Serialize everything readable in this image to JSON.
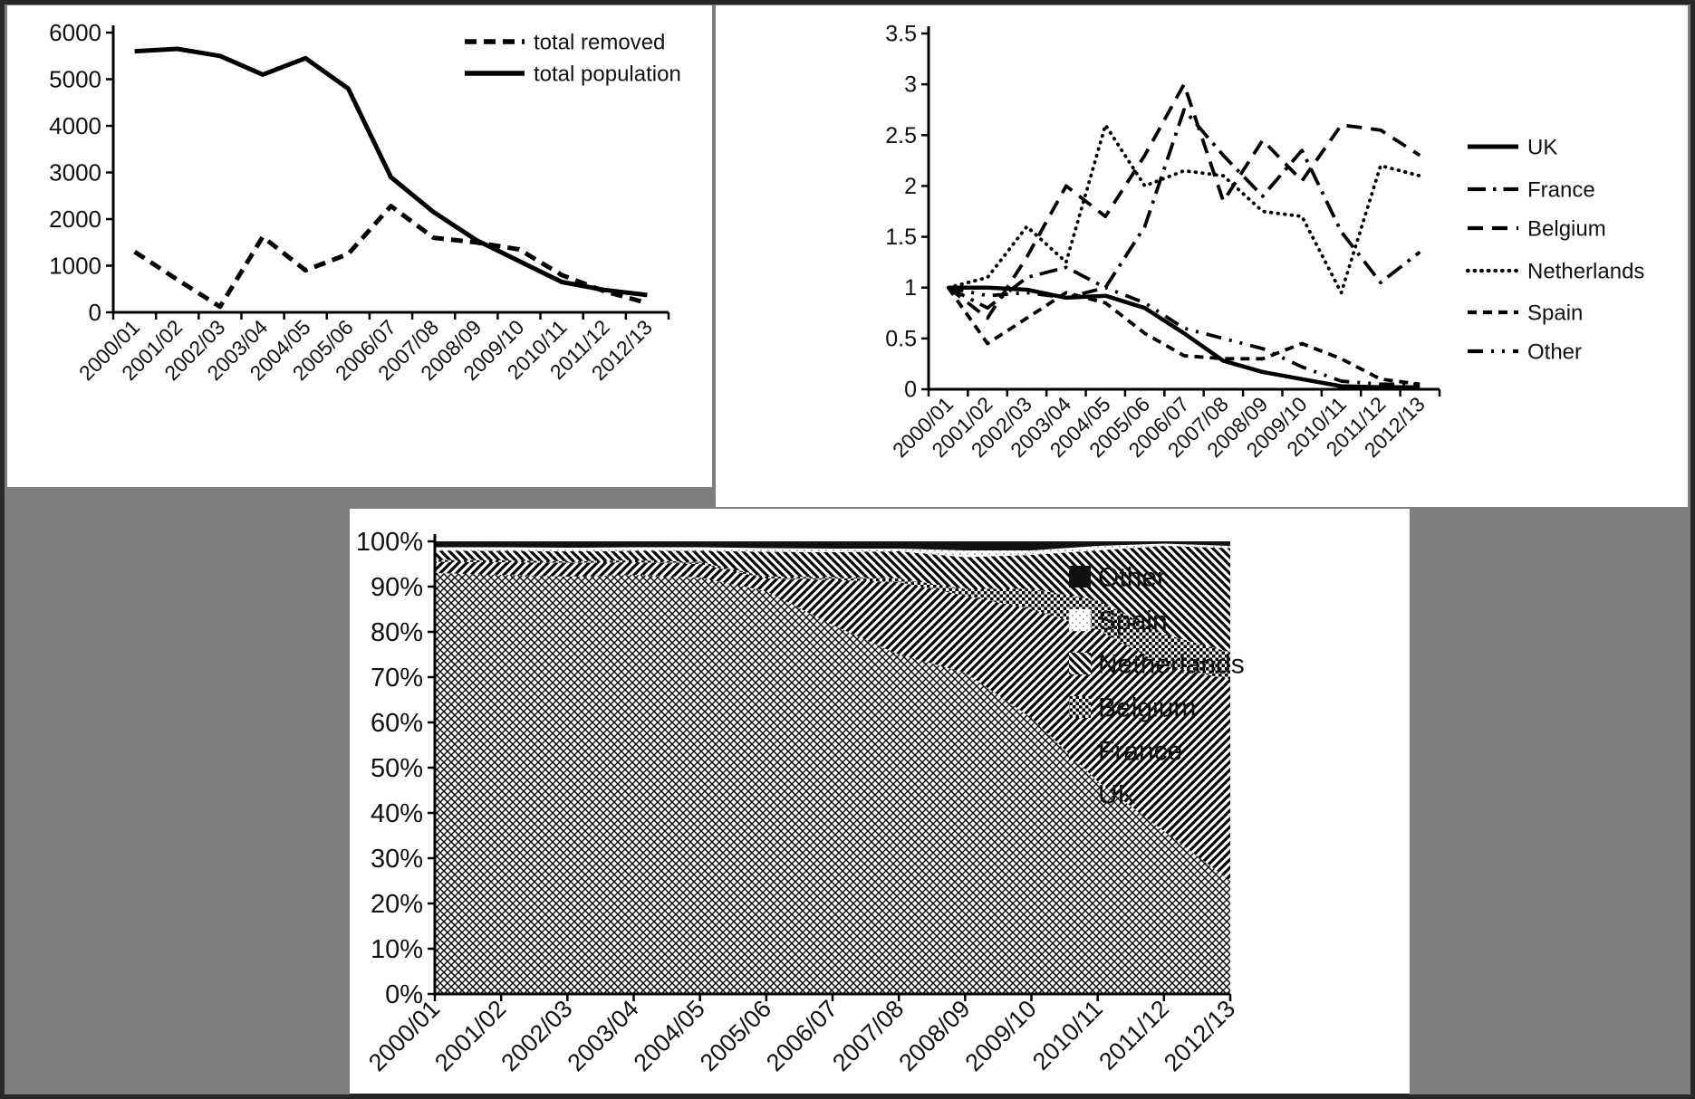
{
  "figure": {
    "background_color": "#7e7e7e",
    "panel_color": "#ffffff",
    "frame_color": "#272727",
    "ink_color": "#111111"
  },
  "categories": [
    "2000/01",
    "2001/02",
    "2002/03",
    "2003/04",
    "2004/05",
    "2005/06",
    "2006/07",
    "2007/08",
    "2008/09",
    "2009/10",
    "2010/11",
    "2011/12",
    "2012/13"
  ],
  "chart_data": [
    {
      "id": "population",
      "type": "line",
      "title": "",
      "xlabel": "",
      "ylabel": "",
      "ylim": [
        0,
        6000
      ],
      "ytick_step": 1000,
      "ytick_labels": [
        "0",
        "1000",
        "2000",
        "3000",
        "4000",
        "5000",
        "6000"
      ],
      "grid": false,
      "legend_position": "top-right-inside",
      "categories": [
        "2000/01",
        "2001/02",
        "2002/03",
        "2003/04",
        "2004/05",
        "2005/06",
        "2006/07",
        "2007/08",
        "2008/09",
        "2009/10",
        "2010/11",
        "2011/12",
        "2012/13"
      ],
      "series": [
        {
          "name": "total removed",
          "line_style": "dashed",
          "values": [
            1300,
            700,
            120,
            1620,
            900,
            1250,
            2280,
            1600,
            1500,
            1350,
            800,
            450,
            200
          ]
        },
        {
          "name": "total population",
          "line_style": "solid",
          "values": [
            5600,
            5650,
            5500,
            5100,
            5450,
            4800,
            2900,
            2150,
            1550,
            1100,
            650,
            480,
            370
          ]
        }
      ]
    },
    {
      "id": "index",
      "type": "line",
      "title": "",
      "xlabel": "",
      "ylabel": "",
      "ylim": [
        0,
        3.5
      ],
      "ytick_step": 0.5,
      "ytick_labels": [
        "0",
        "0.5",
        "1",
        "1.5",
        "2",
        "2.5",
        "3",
        "3.5"
      ],
      "grid": false,
      "legend_position": "right",
      "categories": [
        "2000/01",
        "2001/02",
        "2002/03",
        "2003/04",
        "2004/05",
        "2005/06",
        "2006/07",
        "2007/08",
        "2008/09",
        "2009/10",
        "2010/11",
        "2011/12",
        "2012/13"
      ],
      "series": [
        {
          "name": "UK",
          "line_style": "solid",
          "values": [
            1.0,
            1.0,
            0.98,
            0.9,
            0.92,
            0.8,
            0.55,
            0.28,
            0.17,
            0.1,
            0.03,
            0.02,
            0.02
          ]
        },
        {
          "name": "France",
          "line_style": "dash-dot",
          "values": [
            1.0,
            0.8,
            1.1,
            1.2,
            1.0,
            1.6,
            2.75,
            2.3,
            1.9,
            2.35,
            1.55,
            1.05,
            1.35
          ]
        },
        {
          "name": "Belgium",
          "line_style": "long-dash",
          "values": [
            1.0,
            0.7,
            1.3,
            2.0,
            1.7,
            2.3,
            3.0,
            1.85,
            2.45,
            2.05,
            2.6,
            2.55,
            2.3
          ]
        },
        {
          "name": "Netherlands",
          "line_style": "dotted",
          "values": [
            1.0,
            1.1,
            1.6,
            1.25,
            2.6,
            2.0,
            2.15,
            2.1,
            1.75,
            1.7,
            0.95,
            2.2,
            2.1
          ]
        },
        {
          "name": "Spain",
          "line_style": "med-dash",
          "values": [
            1.0,
            0.45,
            0.7,
            0.95,
            0.85,
            0.55,
            0.33,
            0.3,
            0.3,
            0.45,
            0.3,
            0.1,
            0.05
          ]
        },
        {
          "name": "Other",
          "line_style": "dash-dot-dot",
          "values": [
            1.0,
            0.92,
            0.95,
            0.9,
            1.0,
            0.85,
            0.6,
            0.5,
            0.4,
            0.22,
            0.08,
            0.05,
            0.05
          ]
        }
      ]
    },
    {
      "id": "shares",
      "type": "area",
      "stacked_percent": true,
      "title": "",
      "xlabel": "",
      "ylabel": "",
      "ylim": [
        0,
        100
      ],
      "ytick_step": 10,
      "ytick_labels": [
        "0%",
        "10%",
        "20%",
        "30%",
        "40%",
        "50%",
        "60%",
        "70%",
        "80%",
        "90%",
        "100%"
      ],
      "grid": false,
      "legend_position": "right",
      "legend_order": [
        "Other",
        "Spain",
        "Netherlands",
        "Belgium",
        "France",
        "UK"
      ],
      "categories": [
        "2000/01",
        "2001/02",
        "2002/03",
        "2003/04",
        "2004/05",
        "2005/06",
        "2006/07",
        "2007/08",
        "2008/09",
        "2009/10",
        "2010/11",
        "2011/12",
        "2012/13"
      ],
      "series": [
        {
          "name": "UK",
          "pattern": "crosshatch",
          "values": [
            93.0,
            92.6,
            92.2,
            92.6,
            92.0,
            89.0,
            81.5,
            75.0,
            71.0,
            61.0,
            47.0,
            36.0,
            25.0
          ]
        },
        {
          "name": "France",
          "pattern": "diag-up",
          "values": [
            2.5,
            2.8,
            3.0,
            2.8,
            3.0,
            2.8,
            10.0,
            16.0,
            17.0,
            24.0,
            33.5,
            36.5,
            44.5
          ]
        },
        {
          "name": "Belgium",
          "pattern": "dense-grid",
          "values": [
            0.4,
            0.4,
            0.4,
            0.4,
            0.5,
            0.4,
            0.6,
            0.8,
            1.5,
            4.5,
            6.5,
            7.0,
            6.0
          ]
        },
        {
          "name": "Netherlands",
          "pattern": "diag-down",
          "values": [
            2.0,
            2.1,
            2.2,
            2.1,
            2.4,
            5.5,
            5.5,
            6.0,
            7.0,
            7.5,
            11.0,
            19.5,
            23.0
          ]
        },
        {
          "name": "Spain",
          "pattern": "light-dots",
          "values": [
            0.8,
            0.8,
            0.8,
            0.8,
            0.8,
            0.8,
            0.8,
            0.6,
            1.5,
            1.0,
            1.0,
            0.5,
            0.5
          ]
        },
        {
          "name": "Other",
          "pattern": "solid-black",
          "values": [
            1.3,
            1.3,
            1.4,
            1.3,
            1.3,
            1.5,
            1.6,
            1.6,
            2.0,
            2.0,
            1.0,
            0.5,
            1.0
          ]
        }
      ]
    }
  ]
}
